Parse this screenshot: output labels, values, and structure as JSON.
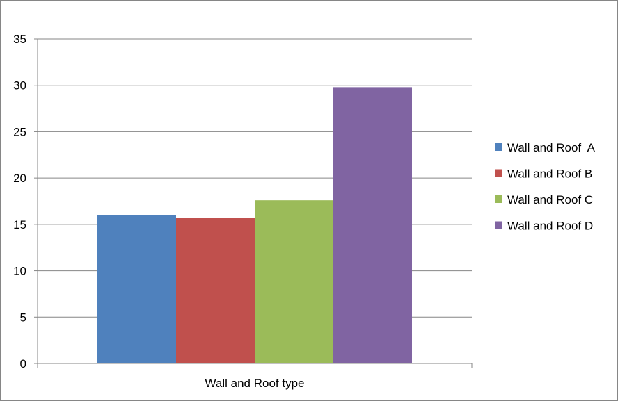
{
  "chart_data": {
    "type": "bar",
    "categories": [
      "Wall and Roof type"
    ],
    "series": [
      {
        "name": "Wall and Roof  A",
        "values": [
          16.0
        ],
        "color": "#4F81BD"
      },
      {
        "name": "Wall and Roof B",
        "values": [
          15.7
        ],
        "color": "#C0504D"
      },
      {
        "name": "Wall and Roof C",
        "values": [
          17.6
        ],
        "color": "#9BBB59"
      },
      {
        "name": "Wall and Roof D",
        "values": [
          29.8
        ],
        "color": "#8064A2"
      }
    ],
    "title": "",
    "xlabel": "Wall and Roof type",
    "ylabel": "",
    "ylim": [
      0,
      35
    ],
    "yticks": [
      "0",
      "5",
      "10",
      "15",
      "20",
      "25",
      "30",
      "35"
    ],
    "grid": true,
    "legend": "right"
  }
}
